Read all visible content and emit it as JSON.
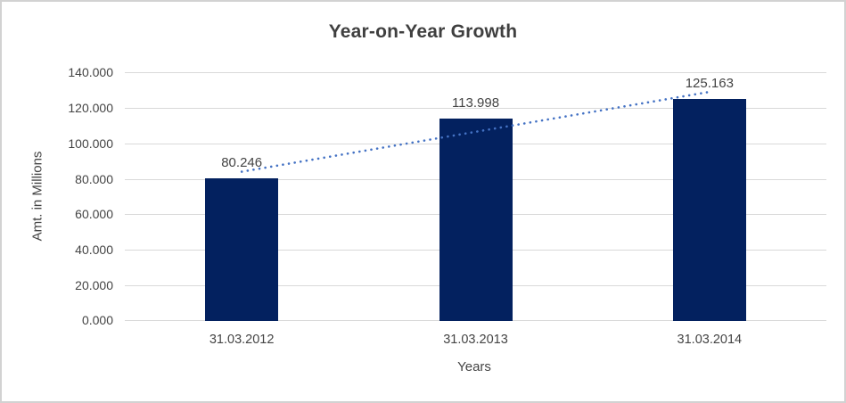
{
  "window": {
    "background_color": "#ffffff",
    "border_color": "#d2d2d2"
  },
  "chart_data": {
    "type": "bar",
    "title": "Year-on-Year Growth",
    "xlabel": "Years",
    "ylabel": "Amt. in Millions",
    "categories": [
      "31.03.2012",
      "31.03.2013",
      "31.03.2014"
    ],
    "series": [
      {
        "name": "Amt. in Millions",
        "values": [
          80.246,
          113.998,
          125.163
        ]
      }
    ],
    "data_labels": [
      "80.246",
      "113.998",
      "125.163"
    ],
    "ylim": [
      0,
      140
    ],
    "ytick_step": 20,
    "ytick_labels": [
      "0.000",
      "20.000",
      "40.000",
      "60.000",
      "80.000",
      "100.000",
      "120.000",
      "140.000"
    ],
    "grid": true,
    "legend_position": "none",
    "bar_color": "#03215f",
    "gridline_color": "#d9d9d9",
    "axis_text_color": "#444444",
    "title_color": "#3f3f3f",
    "trendline": {
      "type": "linear",
      "style": "dotted",
      "color": "#4472c4"
    }
  }
}
